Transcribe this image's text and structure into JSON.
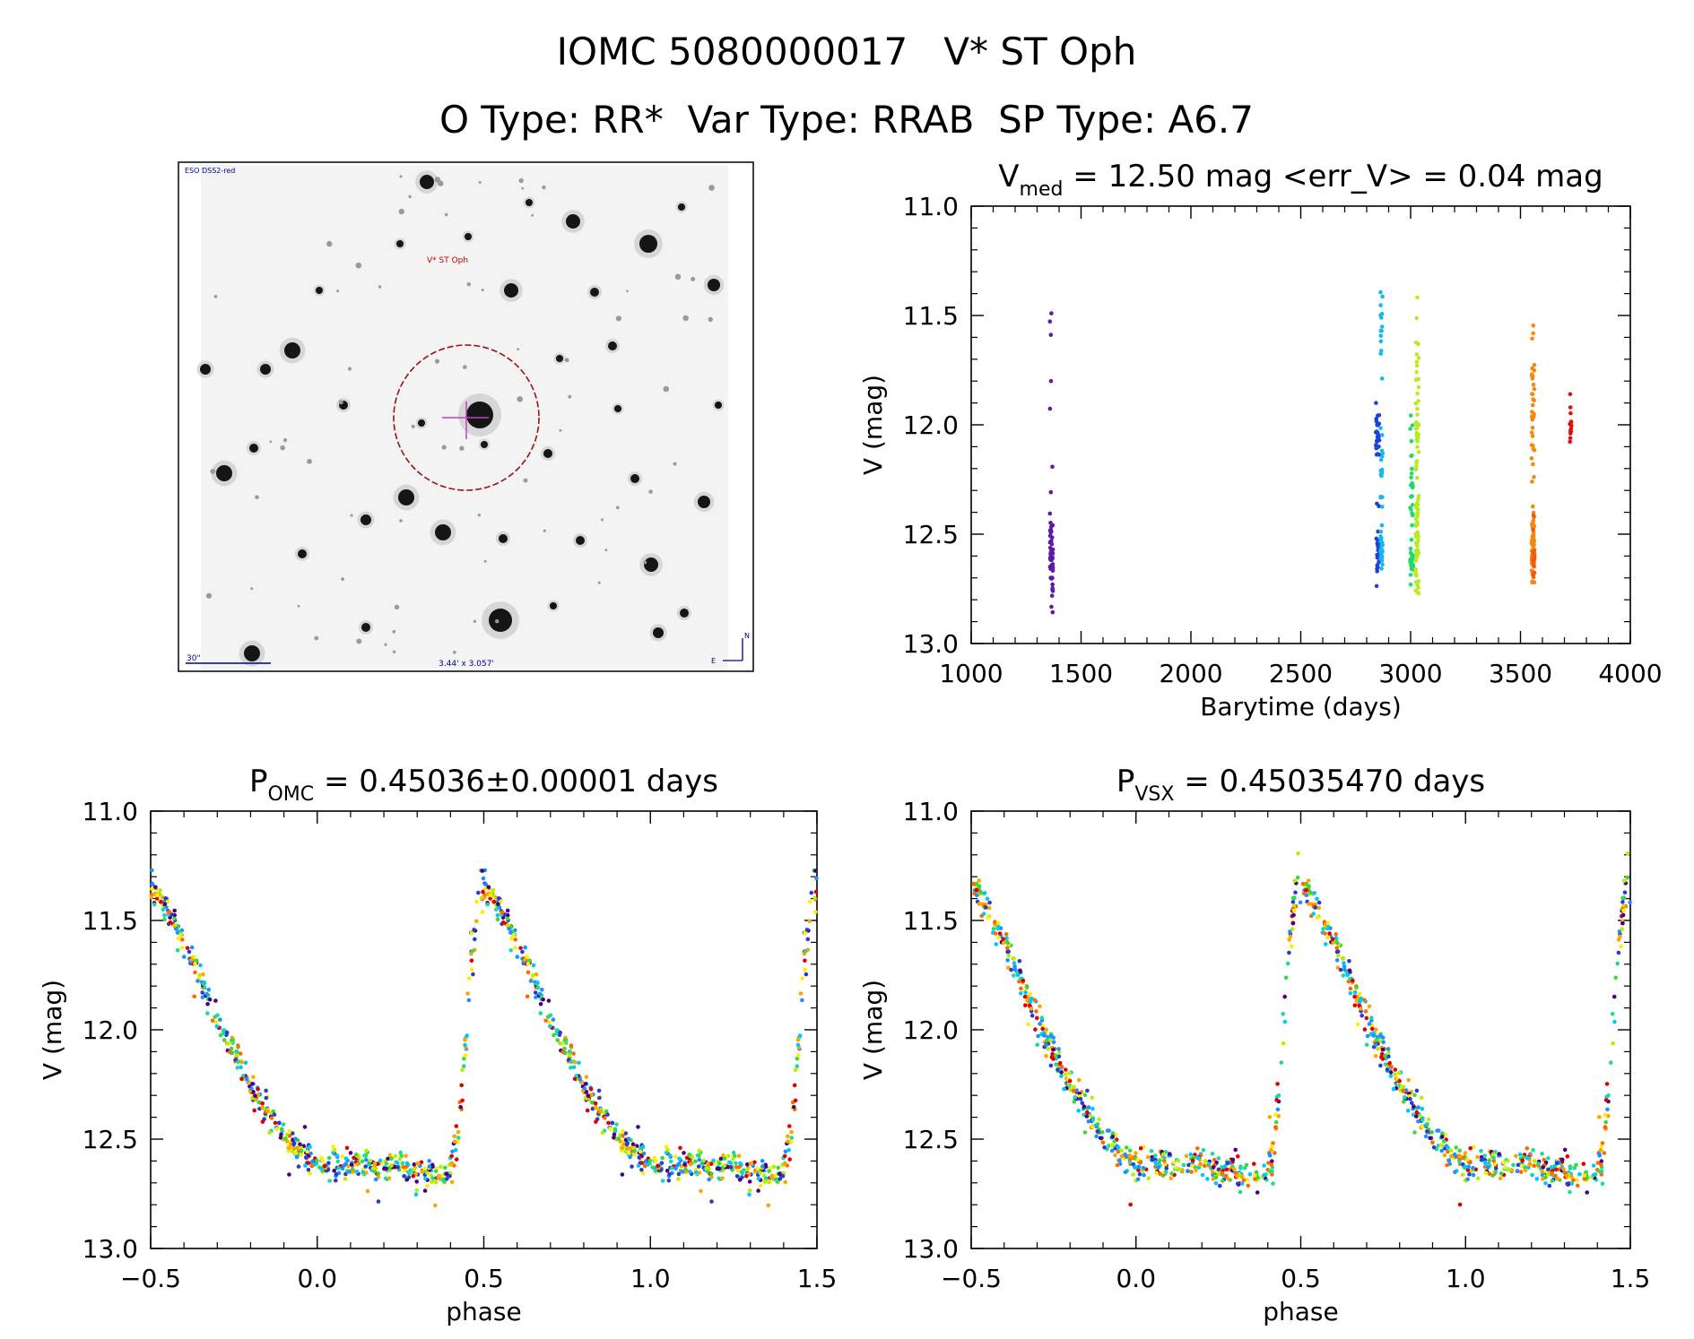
{
  "figure": {
    "title_line1": "IOMC 5080000017   V* ST Oph",
    "title_line2": "O Type: RR*  Var Type: RRAB  SP Type: A6.7"
  },
  "thumbnail": {
    "survey_label": "ESO DSS2-red",
    "target_label": "V* ST Oph",
    "scale_label": "30\"",
    "fov_label": "3.44' x 3.057'",
    "north_label": "N",
    "east_label": "E",
    "target_color": "#c00000",
    "label_color": "#00008b"
  },
  "colors": {
    "rainbow": [
      "#4b0082",
      "#2a3ccf",
      "#1e90ff",
      "#00c8ff",
      "#20d8a0",
      "#3cd93c",
      "#b6f000",
      "#ffee00",
      "#ffa500",
      "#ff6a00",
      "#e00000"
    ]
  },
  "chart_data": [
    {
      "id": "lightcurve",
      "type": "scatter",
      "title_main": "V",
      "title_sub": "med",
      "title_rest": " = 12.50 mag <err_V> = 0.04 mag",
      "xlabel": "Barytime (days)",
      "ylabel": "V (mag)",
      "xlim": [
        1000,
        4000
      ],
      "ylim": [
        11.0,
        13.0
      ],
      "y_inverted": true,
      "xticks": [
        1000,
        1500,
        2000,
        2500,
        3000,
        3500,
        4000
      ],
      "xtick_labels": [
        "1000",
        "1500",
        "2000",
        "2500",
        "3000",
        "3500",
        "4000"
      ],
      "yticks": [
        11.0,
        11.5,
        12.0,
        12.5,
        13.0
      ],
      "ytick_labels": [
        "11.0",
        "11.5",
        "12.0",
        "12.5",
        "13.0"
      ],
      "seasons": [
        {
          "t": 1365,
          "width": 14,
          "color": "#5b1aa8",
          "n": 55,
          "mag_min": 11.38,
          "mag_max": 12.86,
          "clusters": [
            [
              12.6,
              0.12,
              0.8
            ]
          ]
        },
        {
          "t": 2850,
          "width": 16,
          "color": "#1a44d8",
          "n": 55,
          "mag_min": 11.9,
          "mag_max": 12.76,
          "clusters": [
            [
              12.03,
              0.07,
              0.4
            ],
            [
              12.6,
              0.06,
              0.5
            ]
          ]
        },
        {
          "t": 2868,
          "width": 10,
          "color": "#18b8ee",
          "n": 60,
          "mag_min": 11.31,
          "mag_max": 12.72,
          "clusters": [
            [
              11.55,
              0.12,
              0.2
            ],
            [
              12.2,
              0.1,
              0.2
            ],
            [
              12.58,
              0.05,
              0.3
            ]
          ]
        },
        {
          "t": 3005,
          "width": 14,
          "color": "#24d870",
          "n": 50,
          "mag_min": 11.9,
          "mag_max": 12.76,
          "clusters": [
            [
              12.33,
              0.12,
              0.5
            ],
            [
              12.62,
              0.05,
              0.3
            ]
          ]
        },
        {
          "t": 3030,
          "width": 14,
          "color": "#b8ec20",
          "n": 95,
          "mag_min": 11.4,
          "mag_max": 12.8,
          "clusters": [
            [
              11.9,
              0.25,
              0.4
            ],
            [
              12.55,
              0.12,
              0.5
            ]
          ]
        },
        {
          "t": 3557,
          "width": 14,
          "color": "#f08a10",
          "n": 95,
          "mag_min": 11.27,
          "mag_max": 12.72,
          "clusters": [
            [
              11.85,
              0.2,
              0.3
            ],
            [
              12.58,
              0.09,
              0.6
            ]
          ]
        },
        {
          "t": 3560,
          "width": 8,
          "color": "#f05a10",
          "n": 25,
          "mag_min": 12.4,
          "mag_max": 12.72,
          "clusters": [
            [
              12.62,
              0.06,
              1.0
            ]
          ]
        },
        {
          "t": 3728,
          "width": 8,
          "color": "#e01010",
          "n": 14,
          "mag_min": 11.86,
          "mag_max": 12.12,
          "clusters": [
            [
              11.99,
              0.07,
              1.0
            ]
          ]
        }
      ]
    },
    {
      "id": "phase_omc",
      "type": "scatter",
      "title_main": "P",
      "title_sub": "OMC",
      "title_rest": " = 0.45036±0.00001 days",
      "xlabel": "phase",
      "ylabel": "V (mag)",
      "xlim": [
        -0.5,
        1.5
      ],
      "ylim": [
        11.0,
        13.0
      ],
      "y_inverted": true,
      "period_days": 0.45036,
      "xticks": [
        -0.5,
        0.0,
        0.5,
        1.0,
        1.5
      ],
      "xtick_labels": [
        "−0.5",
        "0.0",
        "0.5",
        "1.0",
        "1.5"
      ],
      "yticks": [
        11.0,
        11.5,
        12.0,
        12.5,
        13.0
      ],
      "ytick_labels": [
        "11.0",
        "11.5",
        "12.0",
        "12.5",
        "13.0"
      ],
      "template": {
        "phase": [
          0.0,
          0.1,
          0.2,
          0.3,
          0.38,
          0.42,
          0.46,
          0.49,
          0.55,
          0.6,
          0.7,
          0.8,
          0.9,
          1.0
        ],
        "mag": [
          12.62,
          12.62,
          12.62,
          12.65,
          12.68,
          12.55,
          11.7,
          11.32,
          11.45,
          11.6,
          11.95,
          12.25,
          12.5,
          12.62
        ]
      },
      "n_points": 560
    },
    {
      "id": "phase_vsx",
      "type": "scatter",
      "title_main": "P",
      "title_sub": "VSX",
      "title_rest": " = 0.45035470 days",
      "xlabel": "phase",
      "ylabel": "V (mag)",
      "xlim": [
        -0.5,
        1.5
      ],
      "ylim": [
        11.0,
        13.0
      ],
      "y_inverted": true,
      "period_days": 0.4503547,
      "xticks": [
        -0.5,
        0.0,
        0.5,
        1.0,
        1.5
      ],
      "xtick_labels": [
        "−0.5",
        "0.0",
        "0.5",
        "1.0",
        "1.5"
      ],
      "yticks": [
        11.0,
        11.5,
        12.0,
        12.5,
        13.0
      ],
      "ytick_labels": [
        "11.0",
        "11.5",
        "12.0",
        "12.5",
        "13.0"
      ],
      "template": {
        "phase": [
          0.0,
          0.1,
          0.2,
          0.3,
          0.38,
          0.42,
          0.46,
          0.49,
          0.55,
          0.6,
          0.7,
          0.8,
          0.9,
          1.0
        ],
        "mag": [
          12.62,
          12.62,
          12.62,
          12.65,
          12.68,
          12.55,
          11.7,
          11.32,
          11.45,
          11.6,
          11.95,
          12.25,
          12.5,
          12.62
        ]
      },
      "n_points": 560
    }
  ]
}
